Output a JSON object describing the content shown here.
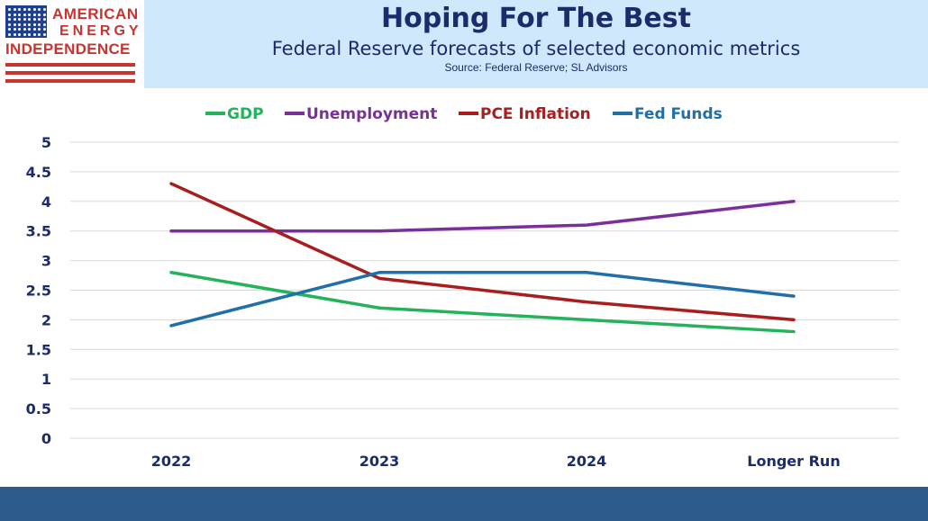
{
  "header": {
    "title": "Hoping For The Best",
    "subtitle": "Federal Reserve forecasts of selected economic metrics",
    "source": "Source: Federal Reserve; SL Advisors"
  },
  "logo": {
    "line1": "AMERICAN",
    "line2": "ENERGY",
    "line3": "INDEPENDENCE",
    "colors": {
      "red": "#c8342f",
      "blue": "#1f3f8f"
    }
  },
  "chart_data": {
    "type": "line",
    "categories": [
      "2022",
      "2023",
      "2024",
      "Longer Run"
    ],
    "ylim": [
      0,
      5
    ],
    "yticks": [
      "0",
      "0.5",
      "1",
      "1.5",
      "2",
      "2.5",
      "3",
      "3.5",
      "4",
      "4.5",
      "5"
    ],
    "ytick_values": [
      0,
      0.5,
      1,
      1.5,
      2,
      2.5,
      3,
      3.5,
      4,
      4.5,
      5
    ],
    "grid": true,
    "legend_position": "top",
    "series": [
      {
        "name": "GDP",
        "color": "#22b35b",
        "values": [
          2.8,
          2.2,
          2.0,
          1.8
        ]
      },
      {
        "name": "Unemployment",
        "color": "#7b2f9b",
        "values": [
          3.5,
          3.5,
          3.6,
          4.0
        ]
      },
      {
        "name": "PCE Inflation",
        "color": "#a81e1e",
        "values": [
          4.3,
          2.7,
          2.3,
          2.0
        ]
      },
      {
        "name": "Fed Funds",
        "color": "#1f6fa8",
        "values": [
          1.9,
          2.8,
          2.8,
          2.4
        ]
      }
    ]
  }
}
